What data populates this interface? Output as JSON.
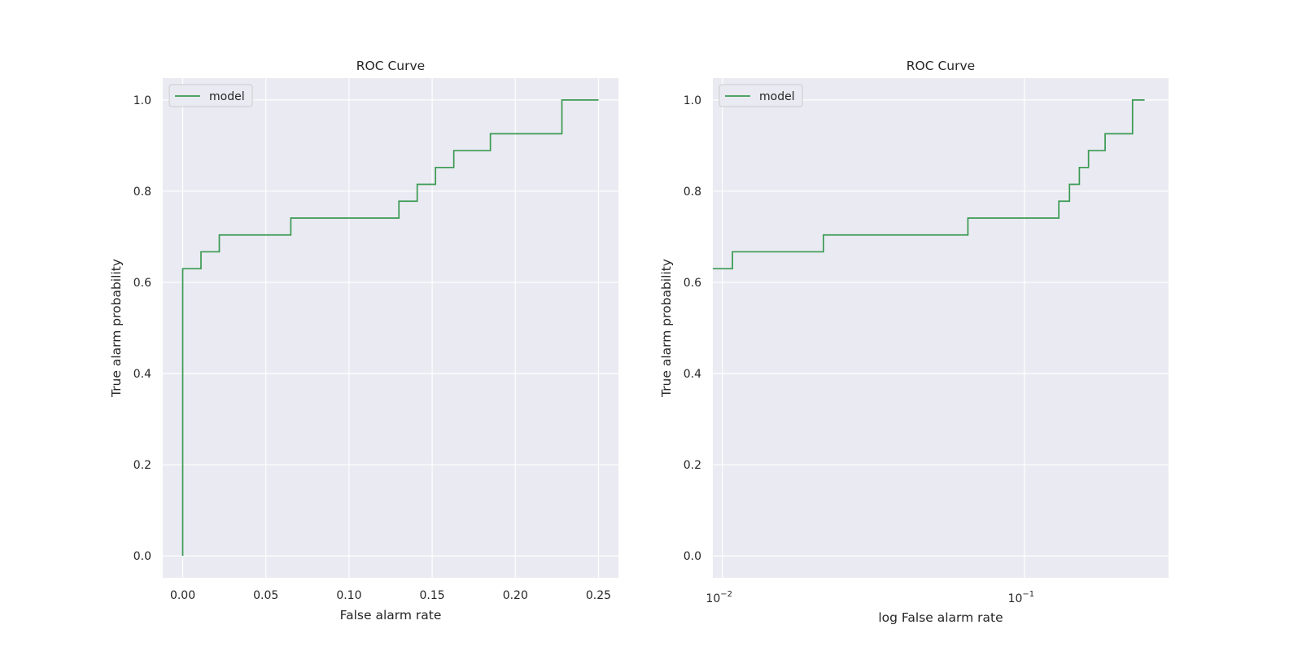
{
  "chart_data": [
    {
      "type": "line",
      "title": "ROC Curve",
      "xlabel": "False alarm rate",
      "ylabel": "True alarm probability",
      "xscale": "linear",
      "xlim": [
        -0.012,
        0.262
      ],
      "ylim": [
        -0.048,
        1.048
      ],
      "xticks": [
        0.0,
        0.05,
        0.1,
        0.15,
        0.2,
        0.25
      ],
      "xtick_labels": [
        "0.00",
        "0.05",
        "0.10",
        "0.15",
        "0.20",
        "0.25"
      ],
      "yticks": [
        0.0,
        0.2,
        0.4,
        0.6,
        0.8,
        1.0
      ],
      "ytick_labels": [
        "0.0",
        "0.2",
        "0.4",
        "0.6",
        "0.8",
        "1.0"
      ],
      "grid": true,
      "legend": "upper-left",
      "series": [
        {
          "name": "model",
          "color": "#3a9a52",
          "step": "post",
          "x": [
            0.0,
            0.0,
            0.011,
            0.022,
            0.065,
            0.13,
            0.141,
            0.152,
            0.163,
            0.185,
            0.228,
            0.25
          ],
          "y": [
            0.0,
            0.63,
            0.667,
            0.704,
            0.741,
            0.778,
            0.815,
            0.852,
            0.889,
            0.926,
            1.0,
            1.0
          ]
        }
      ]
    },
    {
      "type": "line",
      "title": "ROC Curve",
      "xlabel": "log False alarm rate",
      "ylabel": "True alarm probability",
      "xscale": "log",
      "xlim": [
        0.0093,
        0.3
      ],
      "ylim": [
        -0.048,
        1.048
      ],
      "xticks": [
        0.01,
        0.1
      ],
      "xtick_labels": [
        {
          "base": "10",
          "exp": "−2"
        },
        {
          "base": "10",
          "exp": "−1"
        }
      ],
      "yticks": [
        0.0,
        0.2,
        0.4,
        0.6,
        0.8,
        1.0
      ],
      "ytick_labels": [
        "0.0",
        "0.2",
        "0.4",
        "0.6",
        "0.8",
        "1.0"
      ],
      "grid": true,
      "legend": "upper-left",
      "series": [
        {
          "name": "model",
          "color": "#3a9a52",
          "step": "post",
          "x": [
            0.0093,
            0.0108,
            0.0216,
            0.065,
            0.13,
            0.141,
            0.152,
            0.163,
            0.185,
            0.228,
            0.25
          ],
          "y": [
            0.63,
            0.667,
            0.704,
            0.741,
            0.778,
            0.815,
            0.852,
            0.889,
            0.926,
            1.0,
            1.0
          ]
        }
      ]
    }
  ]
}
